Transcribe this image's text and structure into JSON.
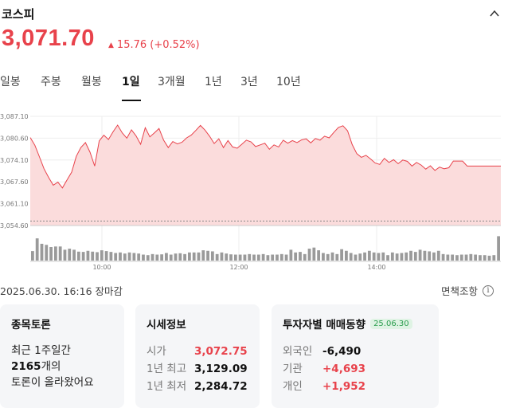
{
  "header": {
    "title": "코스피",
    "price": "3,071.70",
    "change": "15.76 (+0.52%)",
    "change_icon": "up-triangle-icon"
  },
  "tabs": [
    {
      "label": "일봉"
    },
    {
      "label": "주봉"
    },
    {
      "label": "월봉"
    },
    {
      "label": "1일",
      "active": true
    },
    {
      "label": "3개월"
    },
    {
      "label": "1년"
    },
    {
      "label": "3년"
    },
    {
      "label": "10년"
    }
  ],
  "chart_data": {
    "type": "area",
    "y_ticks": [
      "3,087.10",
      "3,080.60",
      "3,074.10",
      "3,067.60",
      "3,061.10",
      "3,054.60"
    ],
    "y_tick_values": [
      3087.1,
      3080.6,
      3074.1,
      3067.6,
      3061.1,
      3054.6
    ],
    "x_ticks": [
      "10:00",
      "12:00",
      "14:00"
    ],
    "ylim": [
      3054.6,
      3087.1
    ],
    "previous_close": 3055.94,
    "series": [
      {
        "values": [
          3080.8,
          3078.5,
          3075.0,
          3071.5,
          3068.9,
          3066.6,
          3067.5,
          3065.8,
          3068.2,
          3070.5,
          3075.2,
          3077.8,
          3079.3,
          3076.4,
          3072.3,
          3079.8,
          3081.5,
          3080.2,
          3082.5,
          3084.5,
          3082.2,
          3080.6,
          3083.1,
          3081.3,
          3078.8,
          3083.7,
          3081.0,
          3082.2,
          3083.5,
          3080.0,
          3077.8,
          3079.6,
          3078.9,
          3079.4,
          3080.7,
          3081.5,
          3082.9,
          3084.4,
          3083.0,
          3081.2,
          3079.0,
          3080.4,
          3077.8,
          3079.9,
          3078.0,
          3077.6,
          3078.8,
          3080.0,
          3079.5,
          3078.1,
          3078.6,
          3079.1,
          3077.3,
          3078.6,
          3078.0,
          3080.0,
          3079.1,
          3079.9,
          3079.3,
          3080.1,
          3080.4,
          3079.2,
          3080.5,
          3080.0,
          3081.2,
          3080.7,
          3082.3,
          3083.8,
          3084.3,
          3082.8,
          3078.7,
          3076.0,
          3074.9,
          3075.5,
          3074.4,
          3073.2,
          3072.8,
          3074.6,
          3073.4,
          3074.2,
          3073.0,
          3074.1,
          3073.7,
          3072.3,
          3073.4,
          3072.6,
          3071.4,
          3072.4,
          3071.0,
          3072.0,
          3071.5,
          3071.8,
          3073.8,
          3073.8,
          3073.8,
          3072.3,
          3072.3,
          3072.3,
          3072.3
        ]
      }
    ],
    "volume": [
      0.35,
      0.82,
      0.62,
      0.58,
      0.5,
      0.52,
      0.52,
      0.4,
      0.44,
      0.4,
      0.33,
      0.32,
      0.36,
      0.33,
      0.31,
      0.38,
      0.35,
      0.32,
      0.28,
      0.3,
      0.26,
      0.3,
      0.28,
      0.26,
      0.22,
      0.2,
      0.24,
      0.22,
      0.23,
      0.28,
      0.22,
      0.26,
      0.27,
      0.24,
      0.3,
      0.3,
      0.3,
      0.38,
      0.36,
      0.34,
      0.24,
      0.3,
      0.26,
      0.23,
      0.22,
      0.22,
      0.22,
      0.24,
      0.22,
      0.22,
      0.24,
      0.2,
      0.22,
      0.22,
      0.24,
      0.22,
      0.4,
      0.3,
      0.32,
      0.24,
      0.44,
      0.48,
      0.38,
      0.28,
      0.24,
      0.3,
      0.24,
      0.42,
      0.36,
      0.28,
      0.22,
      0.26,
      0.3,
      0.36,
      0.3,
      0.28,
      0.3,
      0.2,
      0.3,
      0.26,
      0.28,
      0.3,
      0.36,
      0.32,
      0.4,
      0.36,
      0.34,
      0.3,
      0.36,
      0.24,
      0.22,
      0.22,
      0.2,
      0.22,
      0.22,
      0.24,
      0.22,
      0.2,
      0.2,
      0.18,
      0.2,
      0.9
    ]
  },
  "footer": {
    "date": "2025.06.30. 16:16 장마감",
    "disclaimer": "면책조항",
    "disclaimer_icon": "info-circle-icon"
  },
  "cards": {
    "discussion": {
      "title": "종목토론",
      "line1": "최근 1주일간",
      "count": "2165",
      "count_suffix": "개의",
      "line3": "토론이 올라왔어요"
    },
    "market_info": {
      "title": "시세정보",
      "rows": [
        {
          "label": "시가",
          "value": "3,072.75"
        },
        {
          "label": "1년 최고",
          "value": "3,129.09"
        },
        {
          "label": "1년 최저",
          "value": "2,284.72"
        }
      ]
    },
    "investor": {
      "title": "투자자별 매매동향",
      "badge": "25.06.30",
      "rows": [
        {
          "label": "외국인",
          "value": "-6,490"
        },
        {
          "label": "기관",
          "value": "+4,693"
        },
        {
          "label": "개인",
          "value": "+1,952"
        }
      ]
    }
  },
  "colors": {
    "up": "#e8424b",
    "area_fill": "#fbdcdc",
    "volume": "#9a9a9a",
    "badge_bg": "#dff3e4",
    "badge_text": "#2a9d4d"
  }
}
